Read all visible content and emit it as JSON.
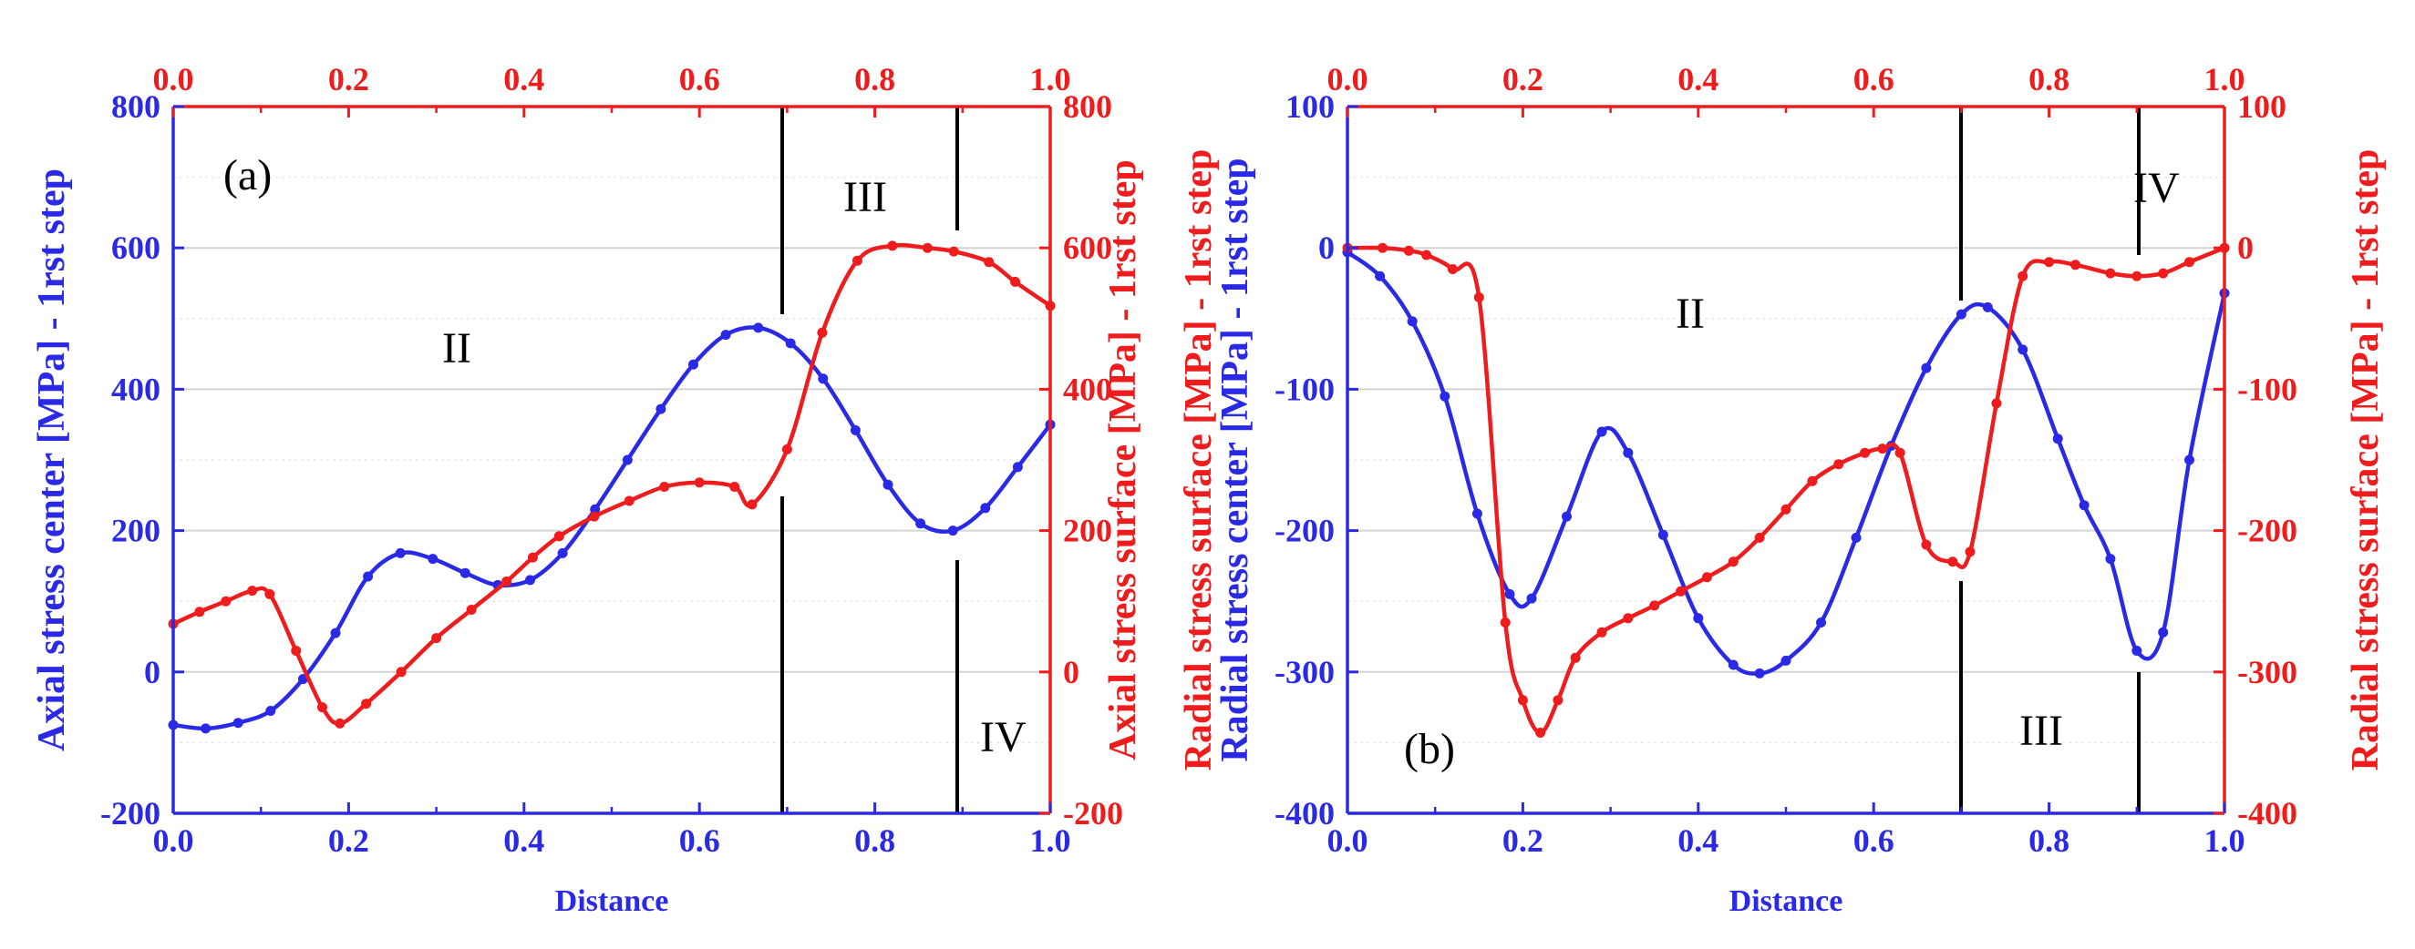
{
  "colors": {
    "blue": "#2a2ae6",
    "red": "#ee1c1c",
    "black": "#000000",
    "grid": "#d4d4d4"
  },
  "chart_data": [
    {
      "panel": "(a)",
      "type": "line",
      "grid": "horizontal",
      "xlabel": "Distance",
      "xlim": [
        0.0,
        1.0
      ],
      "x_ticks": [
        "0.0",
        "0.2",
        "0.4",
        "0.6",
        "0.8",
        "1.0"
      ],
      "top_x_ticks": [
        "0.0",
        "0.2",
        "0.4",
        "0.6",
        "0.8",
        "1.0"
      ],
      "ylabel_left": "Axial stress center [MPa] - 1rst step",
      "ylabel_right": "Axial stress surface [MPa] - 1rst step",
      "ylim_left": [
        -200,
        800
      ],
      "ylim_right": [
        -200,
        800
      ],
      "y_ticks_left": [
        "-200",
        "0",
        "200",
        "400",
        "600",
        "800"
      ],
      "y_ticks_right": [
        "-200",
        "0",
        "200",
        "400",
        "600",
        "800"
      ],
      "series": [
        {
          "axis": "left",
          "color": "#2a2ae6",
          "x": [
            0.0,
            0.037,
            0.074,
            0.111,
            0.148,
            0.185,
            0.222,
            0.259,
            0.296,
            0.333,
            0.37,
            0.407,
            0.444,
            0.481,
            0.518,
            0.556,
            0.593,
            0.63,
            0.667,
            0.704,
            0.741,
            0.778,
            0.815,
            0.852,
            0.889,
            0.926,
            0.963,
            1.0
          ],
          "y": [
            -75,
            -80,
            -72,
            -55,
            -10,
            55,
            135,
            168,
            160,
            140,
            123,
            130,
            168,
            230,
            300,
            372,
            435,
            477,
            487,
            465,
            415,
            342,
            265,
            210,
            200,
            232,
            290,
            350
          ]
        },
        {
          "axis": "right",
          "color": "#ee1c1c",
          "x": [
            0.0,
            0.03,
            0.06,
            0.09,
            0.11,
            0.14,
            0.17,
            0.19,
            0.22,
            0.26,
            0.3,
            0.34,
            0.38,
            0.41,
            0.44,
            0.48,
            0.52,
            0.56,
            0.6,
            0.64,
            0.66,
            0.7,
            0.74,
            0.78,
            0.82,
            0.86,
            0.89,
            0.93,
            0.96,
            1.0
          ],
          "y": [
            68,
            85,
            100,
            115,
            110,
            30,
            -50,
            -73,
            -45,
            0,
            48,
            88,
            128,
            162,
            192,
            220,
            242,
            262,
            268,
            262,
            237,
            315,
            480,
            582,
            603,
            600,
            595,
            580,
            552,
            518
          ]
        }
      ],
      "annotations": [
        "(a)",
        "II",
        "III",
        "IV"
      ],
      "vertical_lines_x": [
        0.7,
        0.9
      ]
    },
    {
      "panel": "(b)",
      "type": "line",
      "grid": "horizontal",
      "xlabel": "Distance",
      "xlim": [
        0.0,
        1.0
      ],
      "x_ticks": [
        "0.0",
        "0.2",
        "0.4",
        "0.6",
        "0.8",
        "1.0"
      ],
      "top_x_ticks": [
        "0.0",
        "0.2",
        "0.4",
        "0.6",
        "0.8",
        "1.0"
      ],
      "ylabel_left": "Radial stress center [MPa] - 1rst step",
      "ylabel_right": "Radial stress surface [MPa] - 1rst step",
      "ylim_left": [
        -400,
        100
      ],
      "ylim_right": [
        -400,
        100
      ],
      "y_ticks_left": [
        "-400",
        "-300",
        "-200",
        "-100",
        "0",
        "100"
      ],
      "y_ticks_right": [
        "-400",
        "-300",
        "-200",
        "-100",
        "0",
        "100"
      ],
      "series": [
        {
          "axis": "left",
          "color": "#2a2ae6",
          "x": [
            0.0,
            0.037,
            0.074,
            0.111,
            0.148,
            0.185,
            0.21,
            0.25,
            0.29,
            0.32,
            0.36,
            0.4,
            0.44,
            0.47,
            0.5,
            0.54,
            0.58,
            0.62,
            0.66,
            0.7,
            0.73,
            0.77,
            0.81,
            0.84,
            0.87,
            0.9,
            0.93,
            0.96,
            1.0
          ],
          "y": [
            -3,
            -20,
            -52,
            -105,
            -188,
            -245,
            -248,
            -190,
            -130,
            -145,
            -203,
            -262,
            -295,
            -301,
            -292,
            -265,
            -205,
            -140,
            -85,
            -47,
            -42,
            -72,
            -135,
            -182,
            -220,
            -285,
            -272,
            -150,
            -32
          ]
        },
        {
          "axis": "right",
          "color": "#ee1c1c",
          "x": [
            0.0,
            0.04,
            0.07,
            0.09,
            0.12,
            0.15,
            0.18,
            0.2,
            0.22,
            0.24,
            0.26,
            0.29,
            0.32,
            0.35,
            0.38,
            0.41,
            0.44,
            0.47,
            0.5,
            0.53,
            0.56,
            0.59,
            0.61,
            0.63,
            0.66,
            0.69,
            0.71,
            0.74,
            0.77,
            0.8,
            0.83,
            0.87,
            0.9,
            0.93,
            0.96,
            1.0
          ],
          "y": [
            0,
            0,
            -2,
            -5,
            -15,
            -35,
            -265,
            -320,
            -343,
            -320,
            -290,
            -272,
            -262,
            -253,
            -243,
            -233,
            -222,
            -205,
            -185,
            -165,
            -153,
            -145,
            -142,
            -145,
            -210,
            -222,
            -215,
            -110,
            -20,
            -10,
            -12,
            -18,
            -20,
            -18,
            -10,
            0
          ]
        }
      ],
      "annotations": [
        "(b)",
        "II",
        "III",
        "IV"
      ],
      "vertical_lines_x": [
        0.7,
        0.9
      ]
    }
  ]
}
